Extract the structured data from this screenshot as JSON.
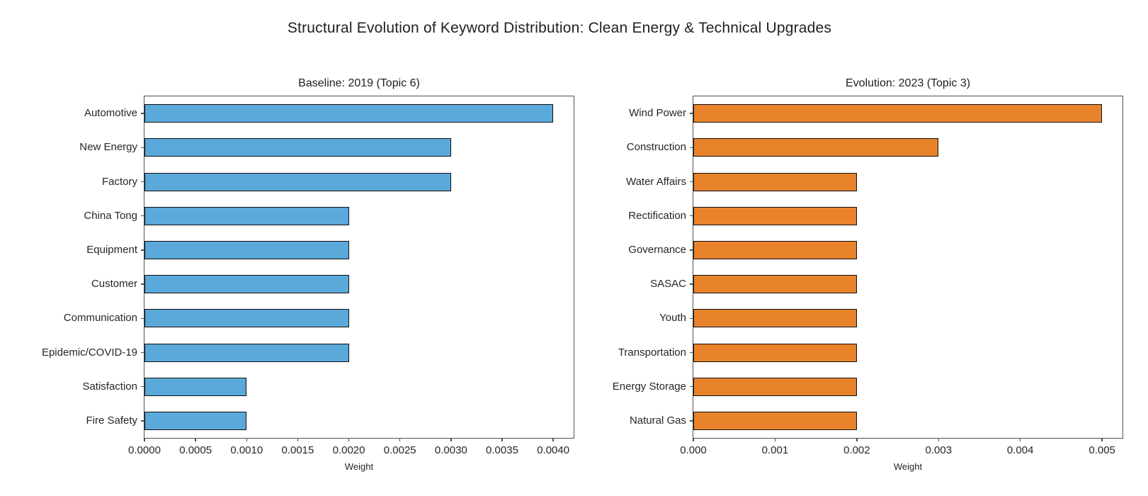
{
  "figure": {
    "title": "Structural Evolution of Keyword Distribution: Clean Energy & Technical Upgrades",
    "background": "#ffffff"
  },
  "chart_data": [
    {
      "type": "bar",
      "orientation": "horizontal",
      "title": "Baseline: 2019 (Topic 6)",
      "categories": [
        "Automotive",
        "New Energy",
        "Factory",
        "China Tong",
        "Equipment",
        "Customer",
        "Communication",
        "Epidemic/COVID-19",
        "Satisfaction",
        "Fire Safety"
      ],
      "values": [
        0.004,
        0.003,
        0.003,
        0.002,
        0.002,
        0.002,
        0.002,
        0.002,
        0.001,
        0.001
      ],
      "xlabel": "Weight",
      "xlim": [
        0,
        0.0042
      ],
      "x_ticks": [
        0.0,
        0.0005,
        0.001,
        0.0015,
        0.002,
        0.0025,
        0.003,
        0.0035,
        0.004
      ],
      "x_tick_labels": [
        "0.0000",
        "0.0005",
        "0.0010",
        "0.0015",
        "0.0020",
        "0.0025",
        "0.0030",
        "0.0035",
        "0.0040"
      ],
      "bar_color": "#5BA8DB",
      "bar_edge_color": "#101010",
      "grid": false,
      "legend": null
    },
    {
      "type": "bar",
      "orientation": "horizontal",
      "title": "Evolution: 2023 (Topic 3)",
      "categories": [
        "Wind Power",
        "Construction",
        "Water Affairs",
        "Rectification",
        "Governance",
        "SASAC",
        "Youth",
        "Transportation",
        "Energy Storage",
        "Natural Gas"
      ],
      "values": [
        0.005,
        0.003,
        0.002,
        0.002,
        0.002,
        0.002,
        0.002,
        0.002,
        0.002,
        0.002
      ],
      "xlabel": "Weight",
      "xlim": [
        0,
        0.00525
      ],
      "x_ticks": [
        0.0,
        0.001,
        0.002,
        0.003,
        0.004,
        0.005
      ],
      "x_tick_labels": [
        "0.000",
        "0.001",
        "0.002",
        "0.003",
        "0.004",
        "0.005"
      ],
      "bar_color": "#E8822B",
      "bar_edge_color": "#101010",
      "grid": false,
      "legend": null
    }
  ],
  "colors": {
    "baseline_bar": "#5BA8DB",
    "evolution_bar": "#E8822B",
    "bar_edge": "#101010",
    "spine": "#4f4f4f",
    "text": "#262626"
  }
}
